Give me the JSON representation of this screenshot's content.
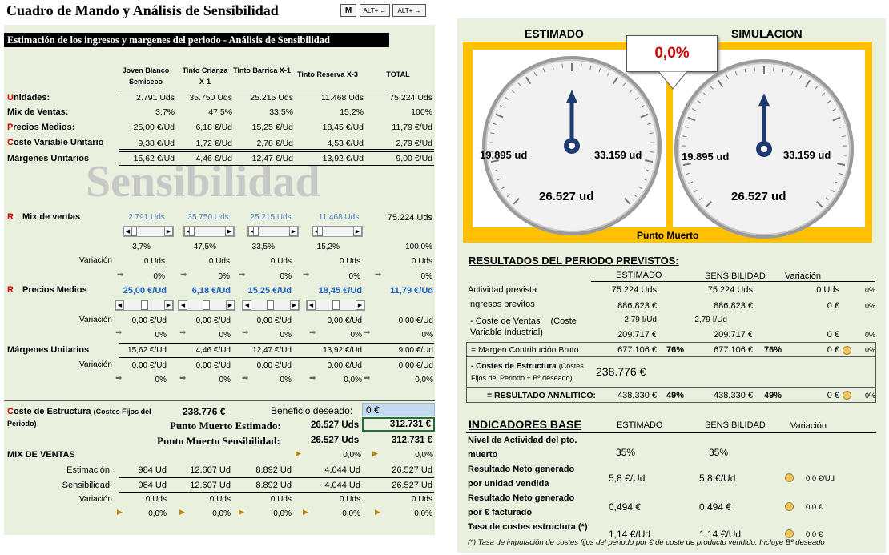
{
  "header": {
    "title": "Cuadro de Mando y Análisis de Sensibilidad",
    "btn_m": "M",
    "btn_alt_left": "ALT+ ←",
    "btn_alt_right": "ALT+ →"
  },
  "left": {
    "subtitle": "Estimación de los ingresos y margenes del periodo - Análisis de Sensibilidad",
    "watermark": "Sensibilidad",
    "columns": [
      "Joven Blanco Semiseco",
      "Tinto Crianza X-1",
      "Tinto Barrica X-1",
      "Tinto Reserva X-3",
      "TOTAL"
    ],
    "rows": [
      {
        "label_first": "U",
        "label_rest": "nidades:",
        "values": [
          "2.791 Uds",
          "35.750 Uds",
          "25.215 Uds",
          "11.468 Uds",
          "75.224 Uds"
        ]
      },
      {
        "label_first": "",
        "label_rest": "Mix de Ventas:",
        "values": [
          "3,7%",
          "47,5%",
          "33,5%",
          "15,2%",
          "100%"
        ]
      },
      {
        "label_first": "P",
        "label_rest": "recios Medios:",
        "values": [
          "25,00 €/Ud",
          "6,18 €/Ud",
          "15,25 €/Ud",
          "18,45 €/Ud",
          "11,79 €/Ud"
        ]
      },
      {
        "label_first": "C",
        "label_rest": "oste Variable Unitario",
        "values": [
          "9,38 €/Ud",
          "1,72 €/Ud",
          "2,78 €/Ud",
          "4,53 €/Ud",
          "2,79 €/Ud"
        ]
      },
      {
        "label_first": "",
        "label_rest": "Márgenes Unitarios",
        "values": [
          "15,62 €/Ud",
          "4,46 €/Ud",
          "12,47 €/Ud",
          "13,92 €/Ud",
          "9,00 €/Ud"
        ]
      }
    ],
    "mix": {
      "r": "R",
      "label": "Mix de ventas",
      "values": [
        "2.791 Uds",
        "35.750 Uds",
        "25.215 Uds",
        "11.468 Uds"
      ],
      "total": "75.224 Uds",
      "pct": [
        "3,7%",
        "47,5%",
        "33,5%",
        "15,2%",
        "100,0%"
      ],
      "var_label": "Variación",
      "var": [
        "0 Uds",
        "0 Uds",
        "0 Uds",
        "0 Uds",
        "0 Uds"
      ],
      "var_pct": [
        "0%",
        "0%",
        "0%",
        "0%",
        "0%"
      ]
    },
    "precios": {
      "r": "R",
      "label": "Precios Medios",
      "values": [
        "25,00 €/Ud",
        "6,18 €/Ud",
        "15,25 €/Ud",
        "18,45 €/Ud",
        "11,79 €/Ud"
      ],
      "var_label": "Variación",
      "var": [
        "0,00 €/Ud",
        "0,00 €/Ud",
        "0,00 €/Ud",
        "0,00 €/Ud",
        "0,00 €/Ud"
      ],
      "var_pct": [
        "0%",
        "0%",
        "0%",
        "0%",
        "0%"
      ]
    },
    "margenes": {
      "label": "Márgenes Unitarios",
      "values": [
        "15,62 €/Ud",
        "4,46 €/Ud",
        "12,47 €/Ud",
        "13,92 €/Ud",
        "9,00 €/Ud"
      ],
      "var_label": "Variación",
      "var": [
        "0,00 €/Ud",
        "0,00 €/Ud",
        "0,00 €/Ud",
        "0,00 €/Ud",
        "0,00 €/Ud"
      ],
      "var_pct": [
        "0%",
        "0%",
        "0%",
        "0,0%",
        "0,0%"
      ]
    },
    "estructura": {
      "label": "C",
      "label_rest": "oste de Estructura",
      "label_small": "(Costes Fijos del Periodo)",
      "value": "238.776 €",
      "beneficio_label": "Beneficio deseado:",
      "beneficio_value": "0 €",
      "pm_est_label": "Punto Muerto Estimado:",
      "pm_est_uds": "26.527 Uds",
      "pm_est_eur": "312.731 €",
      "pm_sens_label": "Punto Muerto Sensibilidad:",
      "pm_sens_uds": "26.527 Uds",
      "pm_sens_eur": "312.731 €"
    },
    "mixv": {
      "title": "MIX DE VENTAS",
      "pct_a": "0,0%",
      "pct_b": "0,0%",
      "est_label": "Estimación:",
      "est": [
        "984 Ud",
        "12.607 Ud",
        "8.892 Ud",
        "4.044 Ud",
        "26.527 Ud"
      ],
      "sens_label": "Sensibilidad:",
      "sens": [
        "984 Ud",
        "12.607 Ud",
        "8.892 Ud",
        "4.044 Ud",
        "26.527 Ud"
      ],
      "var_label": "Variación",
      "var": [
        "0 Uds",
        "0 Uds",
        "0 Uds",
        "0 Uds",
        "0 Uds"
      ],
      "var_pct": [
        "0,0%",
        "0,0%",
        "0,0%",
        "0,0%",
        "0,0%"
      ]
    }
  },
  "gauges": {
    "est_title": "ESTIMADO",
    "sim_title": "SIMULACION",
    "callout": "0,0%",
    "left_min": "19.895 ud",
    "left_max": "33.159 ud",
    "left_value": "26.527 ud",
    "right_min": "19.895 ud",
    "right_max": "33.159 ud",
    "right_value": "26.527 ud",
    "footer": "Punto Muerto",
    "needle_level": 0.5,
    "colors": {
      "frame": "#ffc000",
      "needle": "#1f3a6e"
    }
  },
  "resultados": {
    "title": "RESULTADOS DEL PERIODO PREVISTOS:",
    "h_est": "ESTIMADO",
    "h_sens": "SENSIBILIDAD",
    "h_var": "Variación",
    "actividad": {
      "label": "Actividad prevista",
      "est": "75.224 Uds",
      "sens": "75.224 Uds",
      "var": "0 Uds",
      "pct": "0%"
    },
    "ingresos": {
      "label": "Ingresos previtos",
      "est": "886.823 €",
      "sens": "886.823 €",
      "var": "0 €",
      "pct": "0%"
    },
    "coste": {
      "label1": "- Coste de Ventas",
      "label1b": "(Coste",
      "label2": "Variable Industrial)",
      "unit_est": "2,79 I/Ud",
      "unit_sens": "2,79 I/Ud",
      "est": "209.717 €",
      "sens": "209.717 €",
      "var": "0 €",
      "pct": "0%"
    },
    "margen": {
      "label": "= Margen Contribución Bruto",
      "est": "677.106 €",
      "est_pct": "76%",
      "sens": "677.106 €",
      "sens_pct": "76%",
      "var": "0 €",
      "pct": "0%"
    },
    "estructura": {
      "label1": "- Costes de Estructura",
      "label1b": "(Costes",
      "label2": "Fijos del Periodo + Bº deseado)",
      "value": "238.776 €"
    },
    "resultado": {
      "label": "= RESULTADO ANALITICO:",
      "est": "438.330 €",
      "est_pct": "49%",
      "sens": "438.330 €",
      "sens_pct": "49%",
      "var": "0 €",
      "pct": "0%"
    }
  },
  "indicadores": {
    "title": "INDICADORES BASE",
    "h_est": "ESTIMADO",
    "h_sens": "SENSIBILIDAD",
    "h_var": "Variación",
    "rows": [
      {
        "l1": "Nivel de Actividad del pto.",
        "l2": "muerto",
        "est": "35%",
        "sens": "35%",
        "var": ""
      },
      {
        "l1": "Resultado Neto generado",
        "l2": "por unidad vendida",
        "est": "5,8 €/Ud",
        "sens": "5,8 €/Ud",
        "var": "0,0 €/Ud"
      },
      {
        "l1": "Resultado Neto generado",
        "l2": "por €  facturado",
        "est": "0,494 €",
        "sens": "0,494 €",
        "var": "0,0 €"
      },
      {
        "l1": "Tasa de costes estructura (*)",
        "l2": "",
        "est": "1,14 €/Ud",
        "sens": "1,14 €/Ud",
        "var": "0,0 €"
      }
    ],
    "footnote": "(*) Tasa de imputación de costes fijos del periodo por € de coste de producto vendido. Incluye Bº deseado"
  }
}
